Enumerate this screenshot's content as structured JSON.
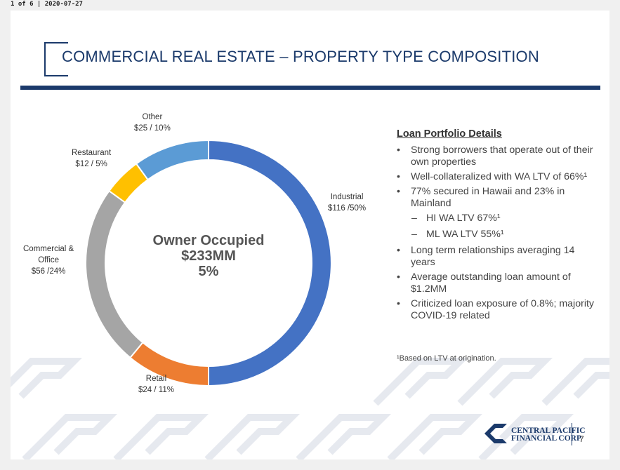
{
  "header_stamp": "1 of 6 | 2020-07-27",
  "slide": {
    "title": "COMMERCIAL REAL ESTATE – PROPERTY TYPE COMPOSITION",
    "page_number": "7"
  },
  "center": {
    "line1": "Owner Occupied",
    "line2": "$233MM",
    "line3": "5%"
  },
  "chart_data": {
    "type": "pie",
    "categories": [
      "Industrial",
      "Retail",
      "Commercial & Office",
      "Restaurant",
      "Other"
    ],
    "values": [
      50,
      11,
      24,
      5,
      10
    ],
    "amounts": [
      "$116",
      "$24",
      "$56",
      "$12",
      "$25"
    ],
    "colors": [
      "#4472c4",
      "#ed7d31",
      "#a5a5a5",
      "#ffc000",
      "#5b9bd5"
    ],
    "labels": [
      {
        "name": "Industrial",
        "value": "$116 /50%"
      },
      {
        "name": "Retail",
        "value": "$24 / 11%"
      },
      {
        "name_lines": [
          "Commercial &",
          "Office"
        ],
        "value": "$56 /24%"
      },
      {
        "name": "Restaurant",
        "value": "$12 / 5%"
      },
      {
        "name": "Other",
        "value": "$25 / 10%"
      }
    ]
  },
  "details": {
    "heading": "Loan Portfolio Details",
    "bullet_char": "•",
    "dash_char": "–",
    "bullets": [
      "Strong borrowers that operate out of their own properties",
      "Well-collateralized with WA LTV of 66%¹",
      "77% secured in Hawaii and 23% in Mainland",
      "Long term relationships averaging 14 years",
      "Average outstanding loan amount of $1.2MM",
      "Criticized loan exposure of 0.8%; majority COVID-19 related"
    ],
    "subbullets": [
      "HI WA LTV 67%¹",
      "ML WA LTV 55%¹"
    ],
    "footnote": "¹Based on LTV at origination."
  },
  "logo": {
    "line1": "CENTRAL PACIFIC",
    "line2": "FINANCIAL CORP"
  }
}
